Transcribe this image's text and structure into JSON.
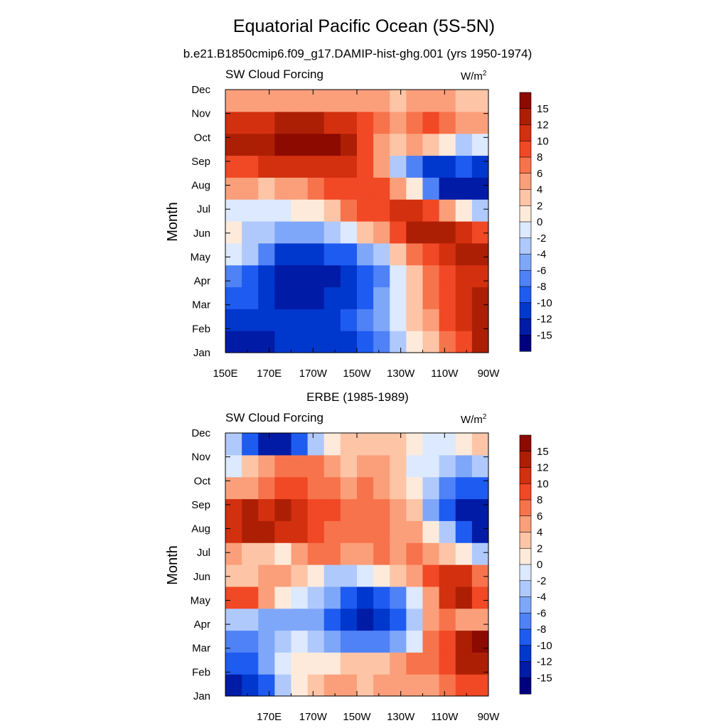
{
  "figure": {
    "title": "Equatorial Pacific Ocean (5S-5N)"
  },
  "colors": {
    "levels": [
      "#00007f",
      "#001ba6",
      "#0037cd",
      "#1e5bf0",
      "#4f82f6",
      "#7fa7f9",
      "#b0c9fc",
      "#dce9fe",
      "#feeada",
      "#fdc4a6",
      "#fb9f7a",
      "#f7734c",
      "#f14825",
      "#d3300f",
      "#ad1f05",
      "#8c0a00"
    ]
  },
  "chart_data": [
    {
      "type": "heatmap",
      "title": "b.e21.B1850cmip6.f09_g17.DAMIP-hist-ghg.001 (yrs 1950-1974)",
      "left_label": "SW Cloud Forcing",
      "right_label_base": "W/m",
      "right_label_sup": "2",
      "ylabel": "Month",
      "x_ticks": [
        "150E",
        "170E",
        "170W",
        "150W",
        "130W",
        "110W",
        "90W"
      ],
      "y_ticks": [
        "Jan",
        "Feb",
        "Mar",
        "Apr",
        "May",
        "Jun",
        "Jul",
        "Aug",
        "Sep",
        "Oct",
        "Nov",
        "Dec"
      ],
      "x_range": [
        "150E",
        "90W"
      ],
      "colorbar_levels": [
        "15",
        "12",
        "10",
        "8",
        "6",
        "4",
        "2",
        "0",
        "-2",
        "-4",
        "-6",
        "-8",
        "-10",
        "-12",
        "-15"
      ],
      "grid": [
        [
          -13,
          -13,
          -13,
          -12,
          -12,
          -12,
          -11,
          -11,
          -9,
          -7,
          -4,
          0,
          3,
          6,
          8,
          12
        ],
        [
          -12,
          -11,
          -12,
          -12,
          -12,
          -12,
          -11,
          -10,
          -8,
          -5,
          -2,
          2,
          5,
          8,
          11,
          14
        ],
        [
          -9,
          -10,
          -11,
          -13,
          -13,
          -13,
          -12,
          -11,
          -9,
          -5,
          -1,
          3,
          6,
          9,
          11,
          12
        ],
        [
          -7,
          -9,
          -11,
          -14,
          -14,
          -14,
          -13,
          -12,
          -10,
          -7,
          -2,
          3,
          7,
          9,
          10,
          11
        ],
        [
          -2,
          -4,
          -8,
          -11,
          -11,
          -11,
          -10,
          -9,
          -6,
          -3,
          2,
          6,
          9,
          11,
          12,
          12
        ],
        [
          0,
          -3,
          -4,
          -5,
          -6,
          -5,
          -4,
          -2,
          2,
          5,
          9,
          13,
          14,
          13,
          11,
          8
        ],
        [
          -1,
          -1,
          -2,
          -1,
          0,
          1,
          3,
          6,
          8,
          9,
          11,
          10,
          8,
          5,
          0,
          -4
        ],
        [
          4,
          4,
          3,
          4,
          5,
          6,
          8,
          9,
          9,
          8,
          5,
          0,
          -8,
          -13,
          -15,
          -13
        ],
        [
          9,
          9,
          10,
          10,
          11,
          11,
          10,
          10,
          8,
          4,
          -3,
          -8,
          -11,
          -11,
          -9,
          -11
        ],
        [
          12,
          13,
          14,
          16,
          16,
          16,
          15,
          12,
          8,
          4,
          3,
          5,
          3,
          0,
          -3,
          -1
        ],
        [
          10,
          11,
          11,
          12,
          12,
          12,
          11,
          10,
          8,
          6,
          5,
          6,
          8,
          6,
          4,
          5
        ],
        [
          4,
          4,
          4,
          4,
          4,
          4,
          4,
          5,
          5,
          4,
          3,
          4,
          5,
          5,
          3,
          2
        ]
      ]
    },
    {
      "type": "heatmap",
      "title": "ERBE (1985-1989)",
      "left_label": "SW Cloud Forcing",
      "right_label_base": "W/m",
      "right_label_sup": "2",
      "ylabel": "Month",
      "x_ticks": [
        "170E",
        "170W",
        "150W",
        "130W",
        "110W",
        "90W"
      ],
      "y_ticks": [
        "Jan",
        "Feb",
        "Mar",
        "Apr",
        "May",
        "Jun",
        "Jul",
        "Aug",
        "Sep",
        "Oct",
        "Nov",
        "Dec"
      ],
      "x_range": [
        "150E",
        "90W"
      ],
      "colorbar_levels": [
        "15",
        "12",
        "10",
        "8",
        "6",
        "4",
        "2",
        "0",
        "-2",
        "-4",
        "-6",
        "-8",
        "-10",
        "-12",
        "-15"
      ],
      "grid": [
        [
          -13,
          -12,
          -9,
          -4,
          0,
          2,
          4,
          4,
          3,
          4,
          5,
          4,
          4,
          6,
          8,
          9
        ],
        [
          -10,
          -9,
          -6,
          -2,
          0,
          1,
          0,
          2,
          2,
          3,
          4,
          6,
          7,
          9,
          12,
          13
        ],
        [
          -8,
          -7,
          -5,
          -3,
          -2,
          -4,
          -6,
          -8,
          -8,
          -7,
          -6,
          -2,
          6,
          9,
          12,
          15
        ],
        [
          -3,
          -4,
          -5,
          -6,
          -6,
          -5,
          -9,
          -11,
          -13,
          -12,
          -9,
          -4,
          4,
          7,
          5,
          5
        ],
        [
          9,
          8,
          5,
          0,
          -2,
          -4,
          -6,
          -9,
          -11,
          -10,
          -7,
          -2,
          5,
          10,
          12,
          8
        ],
        [
          3,
          2,
          4,
          4,
          2,
          0,
          -3,
          -3,
          -2,
          1,
          2,
          4,
          8,
          11,
          10,
          6
        ],
        [
          4,
          3,
          2,
          1,
          4,
          6,
          6,
          5,
          5,
          6,
          5,
          6,
          4,
          2,
          0,
          -4
        ],
        [
          10,
          13,
          13,
          11,
          10,
          8,
          7,
          7,
          6,
          6,
          4,
          4,
          1,
          -4,
          -10,
          -14
        ],
        [
          10,
          12,
          11,
          12,
          10,
          9,
          8,
          6,
          6,
          6,
          5,
          2,
          -5,
          -9,
          -13,
          -14
        ],
        [
          5,
          5,
          6,
          8,
          9,
          7,
          6,
          5,
          6,
          5,
          3,
          0,
          -4,
          -8,
          -10,
          -10
        ],
        [
          -2,
          3,
          5,
          6,
          7,
          6,
          5,
          3,
          5,
          4,
          2,
          -1,
          -2,
          -4,
          -5,
          -3
        ],
        [
          -4,
          -9,
          -13,
          -14,
          -10,
          -4,
          0,
          2,
          3,
          2,
          2,
          0,
          -2,
          -1,
          0,
          2
        ]
      ]
    }
  ]
}
